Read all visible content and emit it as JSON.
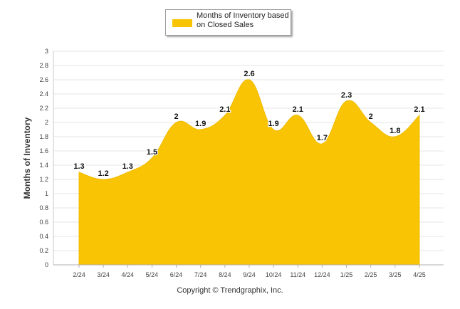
{
  "colors": {
    "fill": "#F8C403",
    "stroke": "#F0BA00"
  },
  "chart_data": {
    "type": "area",
    "x": [
      "2/24",
      "3/24",
      "4/24",
      "5/24",
      "6/24",
      "7/24",
      "8/24",
      "9/24",
      "10/24",
      "11/24",
      "12/24",
      "1/25",
      "2/25",
      "3/25",
      "4/25"
    ],
    "series": [
      {
        "name": "Months of Inventory based on Closed Sales",
        "values": [
          1.3,
          1.2,
          1.3,
          1.5,
          2,
          1.9,
          2.1,
          2.6,
          1.9,
          2.1,
          1.7,
          2.3,
          2,
          1.8,
          2.1
        ]
      }
    ],
    "data_labels": [
      "1.3",
      "1.2",
      "1.3",
      "1.5",
      "2",
      "1.9",
      "2.1",
      "2.6",
      "1.9",
      "2.1",
      "1.7",
      "2.3",
      "2",
      "1.8",
      "2.1"
    ],
    "yticks": [
      "0",
      "0.2",
      "0.4",
      "0.6",
      "0.8",
      "1",
      "1.2",
      "1.4",
      "1.6",
      "1.8",
      "2",
      "2.2",
      "2.4",
      "2.6",
      "2.8",
      "3"
    ],
    "ylim": [
      0,
      3
    ],
    "ylabel": "Months of Inventory",
    "xlabel": "",
    "grid": true,
    "legend": {
      "label": "Months of Inventory based on Closed Sales",
      "placement": "top-center"
    }
  },
  "footer": "Copyright © Trendgraphix, Inc."
}
